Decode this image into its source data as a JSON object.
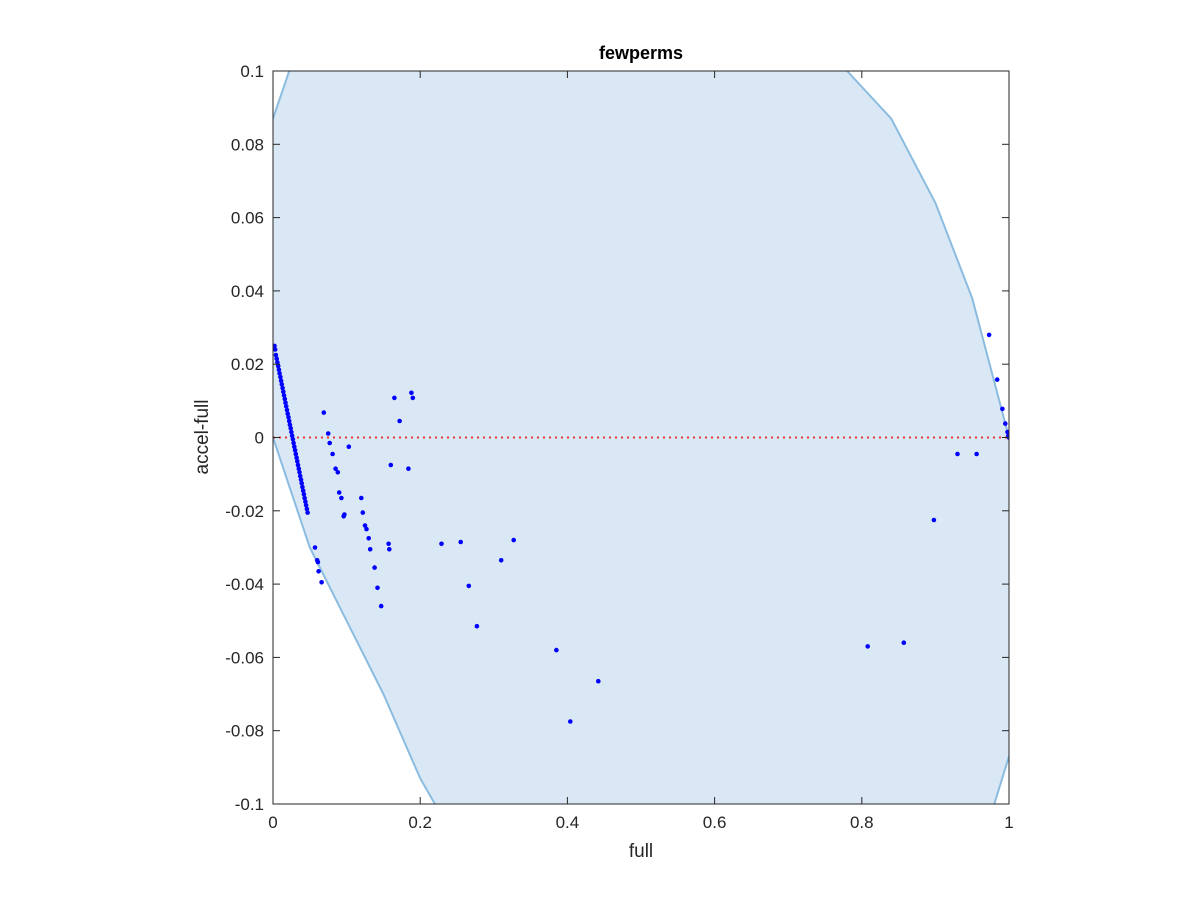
{
  "chart_data": {
    "type": "scatter",
    "title": "fewperms",
    "xlabel": "full",
    "ylabel": "accel-full",
    "xlim": [
      0,
      1
    ],
    "ylim": [
      -0.1,
      0.1
    ],
    "xticks": [
      "0",
      "0.2",
      "0.4",
      "0.6",
      "0.8",
      "1"
    ],
    "yticks": [
      "-0.1",
      "-0.08",
      "-0.06",
      "-0.04",
      "-0.02",
      "0",
      "0.02",
      "0.04",
      "0.06",
      "0.08",
      "0.1"
    ],
    "grid": false,
    "reference_line": {
      "y": 0,
      "style": "dotted",
      "color": "#e8393a"
    },
    "band": {
      "fill": "#d9e8f4",
      "edge": "#8bbce0",
      "left_boundary": [
        [
          0,
          0.087
        ],
        [
          0.022,
          0.1
        ],
        [
          0.022,
          0.1
        ]
      ],
      "lower_boundary": [
        [
          0,
          0
        ],
        [
          0.02,
          -0.012
        ],
        [
          0.05,
          -0.03
        ],
        [
          0.1,
          -0.05
        ],
        [
          0.15,
          -0.07
        ],
        [
          0.2,
          -0.093
        ],
        [
          0.22,
          -0.1
        ]
      ],
      "upper_boundary": [
        [
          0.78,
          0.1
        ],
        [
          0.84,
          0.087
        ],
        [
          0.9,
          0.064
        ],
        [
          0.95,
          0.038
        ],
        [
          1,
          0
        ]
      ],
      "right_boundary": [
        [
          0.98,
          -0.1
        ],
        [
          1,
          -0.087
        ]
      ]
    },
    "point_color": "#0000ff",
    "series": [
      {
        "values": [
          [
            0.002,
            0.025
          ],
          [
            0.003,
            0.024
          ],
          [
            0.004,
            0.0225
          ],
          [
            0.005,
            0.0215
          ],
          [
            0.006,
            0.0205
          ],
          [
            0.007,
            0.0195
          ],
          [
            0.008,
            0.0185
          ],
          [
            0.009,
            0.0175
          ],
          [
            0.01,
            0.0165
          ],
          [
            0.011,
            0.0155
          ],
          [
            0.012,
            0.0145
          ],
          [
            0.013,
            0.0135
          ],
          [
            0.014,
            0.0125
          ],
          [
            0.015,
            0.0115
          ],
          [
            0.016,
            0.0105
          ],
          [
            0.017,
            0.0095
          ],
          [
            0.018,
            0.0085
          ],
          [
            0.019,
            0.0075
          ],
          [
            0.02,
            0.0065
          ],
          [
            0.021,
            0.0055
          ],
          [
            0.022,
            0.0045
          ],
          [
            0.023,
            0.0035
          ],
          [
            0.024,
            0.0025
          ],
          [
            0.025,
            0.0015
          ],
          [
            0.026,
            0.0005
          ],
          [
            0.027,
            -0.0005
          ],
          [
            0.028,
            -0.0015
          ],
          [
            0.029,
            -0.0025
          ],
          [
            0.03,
            -0.0035
          ],
          [
            0.031,
            -0.0045
          ],
          [
            0.032,
            -0.0055
          ],
          [
            0.033,
            -0.0065
          ],
          [
            0.034,
            -0.0075
          ],
          [
            0.035,
            -0.0085
          ],
          [
            0.036,
            -0.0095
          ],
          [
            0.037,
            -0.0105
          ],
          [
            0.038,
            -0.0115
          ],
          [
            0.039,
            -0.0125
          ],
          [
            0.04,
            -0.0135
          ],
          [
            0.041,
            -0.0145
          ],
          [
            0.042,
            -0.0155
          ],
          [
            0.043,
            -0.0165
          ],
          [
            0.044,
            -0.0175
          ],
          [
            0.045,
            -0.0185
          ],
          [
            0.046,
            -0.0195
          ],
          [
            0.047,
            -0.0205
          ],
          [
            0.057,
            -0.03
          ],
          [
            0.06,
            -0.0335
          ],
          [
            0.061,
            -0.034
          ],
          [
            0.062,
            -0.0365
          ],
          [
            0.066,
            -0.0395
          ],
          [
            0.069,
            0.0068
          ],
          [
            0.075,
            0.0011
          ],
          [
            0.077,
            -0.0015
          ],
          [
            0.081,
            -0.0045
          ],
          [
            0.085,
            -0.0085
          ],
          [
            0.088,
            -0.0095
          ],
          [
            0.09,
            -0.015
          ],
          [
            0.093,
            -0.0165
          ],
          [
            0.096,
            -0.0215
          ],
          [
            0.097,
            -0.021
          ],
          [
            0.103,
            -0.0025
          ],
          [
            0.12,
            -0.0165
          ],
          [
            0.122,
            -0.0205
          ],
          [
            0.125,
            -0.024
          ],
          [
            0.127,
            -0.025
          ],
          [
            0.13,
            -0.0275
          ],
          [
            0.132,
            -0.0305
          ],
          [
            0.138,
            -0.0355
          ],
          [
            0.142,
            -0.041
          ],
          [
            0.147,
            -0.046
          ],
          [
            0.157,
            -0.029
          ],
          [
            0.158,
            -0.0305
          ],
          [
            0.16,
            -0.0075
          ],
          [
            0.165,
            0.0108
          ],
          [
            0.172,
            0.0045
          ],
          [
            0.184,
            -0.0085
          ],
          [
            0.188,
            0.0122
          ],
          [
            0.19,
            0.0108
          ],
          [
            0.229,
            -0.029
          ],
          [
            0.255,
            -0.0285
          ],
          [
            0.266,
            -0.0405
          ],
          [
            0.277,
            -0.0515
          ],
          [
            0.31,
            -0.0335
          ],
          [
            0.327,
            -0.028
          ],
          [
            0.385,
            -0.058
          ],
          [
            0.404,
            -0.0775
          ],
          [
            0.442,
            -0.0665
          ],
          [
            0.808,
            -0.057
          ],
          [
            0.857,
            -0.056
          ],
          [
            0.898,
            -0.0225
          ],
          [
            0.93,
            -0.0045
          ],
          [
            0.956,
            -0.0045
          ],
          [
            0.973,
            0.028
          ],
          [
            0.984,
            0.0158
          ],
          [
            0.991,
            0.0078
          ],
          [
            0.995,
            0.0038
          ],
          [
            0.998,
            0.0015
          ],
          [
            0.999,
            0.0005
          ],
          [
            1.0,
            0.0
          ]
        ]
      }
    ]
  }
}
